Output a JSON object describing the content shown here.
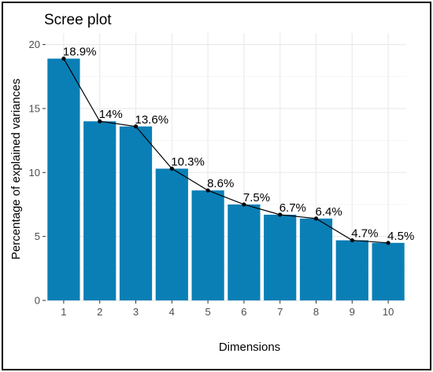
{
  "chart_data": {
    "type": "bar",
    "title": "Scree plot",
    "xlabel": "Dimensions",
    "ylabel": "Percentage of explained variances",
    "categories": [
      "1",
      "2",
      "3",
      "4",
      "5",
      "6",
      "7",
      "8",
      "9",
      "10"
    ],
    "values": [
      18.9,
      14.0,
      13.6,
      10.3,
      8.6,
      7.5,
      6.7,
      6.4,
      4.7,
      4.5
    ],
    "labels": [
      "18.9%",
      "14%",
      "13.6%",
      "10.3%",
      "8.6%",
      "7.5%",
      "6.7%",
      "6.4%",
      "4.7%",
      "4.5%"
    ],
    "ylim": [
      0,
      20.9
    ],
    "yticks": [
      0,
      5,
      10,
      15,
      20
    ],
    "grid": true,
    "overlay": "line",
    "colors": {
      "bar": "#0a7fb6",
      "line": "#000000",
      "grid_major": "#ebebeb",
      "grid_minor": "#f5f5f5"
    }
  }
}
